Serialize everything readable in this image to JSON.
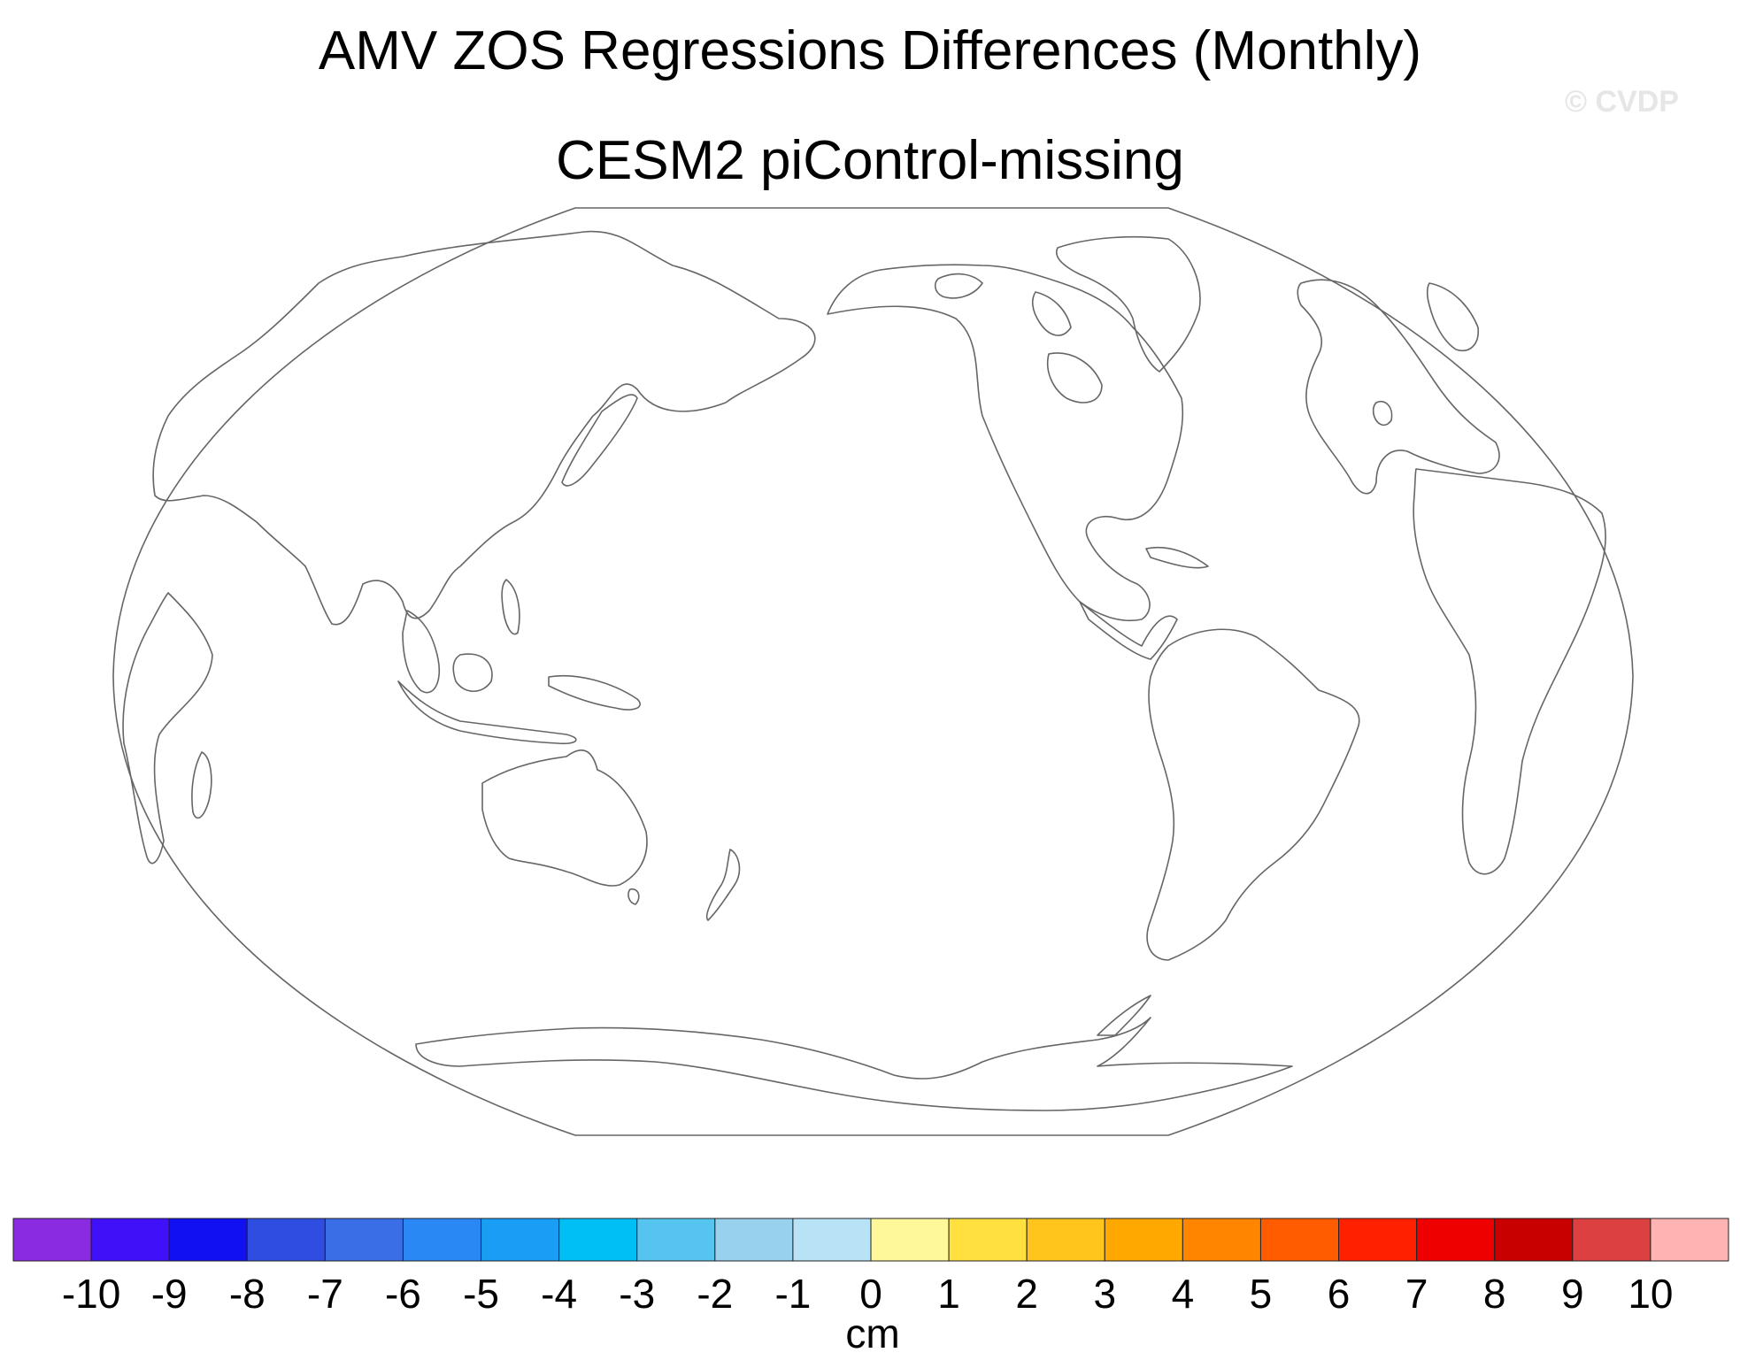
{
  "title": "AMV ZOS Regressions Differences (Monthly)",
  "subtitle": "CESM2 piControl-missing",
  "watermark": "© CVDP",
  "colorbar": {
    "unit": "cm",
    "tick_labels": [
      "-10",
      "-9",
      "-8",
      "-7",
      "-6",
      "-5",
      "-4",
      "-3",
      "-2",
      "-1",
      "0",
      "1",
      "2",
      "3",
      "4",
      "5",
      "6",
      "7",
      "8",
      "9",
      "10"
    ],
    "colors": [
      "#8a2be2",
      "#3f10f8",
      "#1010f0",
      "#2f4de0",
      "#3a6ee6",
      "#2a88f5",
      "#1a9ef5",
      "#00bff5",
      "#55c5f0",
      "#98d1ee",
      "#b8e2f6",
      "#fff89a",
      "#ffe03e",
      "#ffc51c",
      "#ffa800",
      "#ff8400",
      "#ff5c00",
      "#ff2000",
      "#ee0000",
      "#c80000",
      "#dd4040",
      "#ffb3b3"
    ]
  },
  "map": {
    "projection": "Robinson-like (Pacific-centered)",
    "data_shown": "none (all missing)"
  }
}
